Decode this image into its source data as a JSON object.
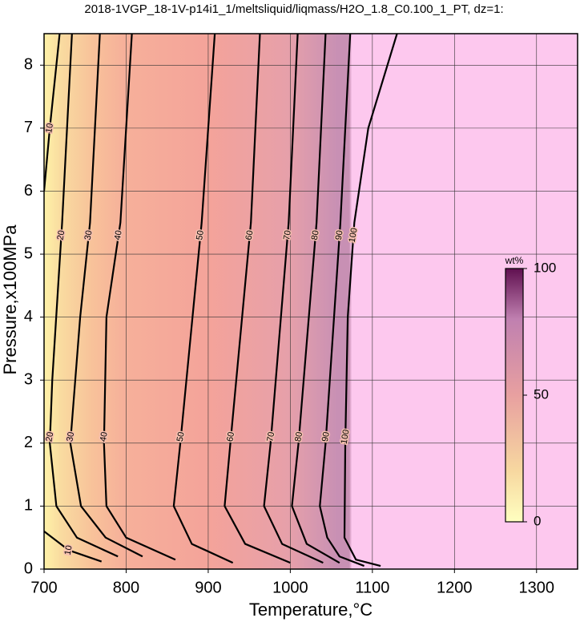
{
  "chart_data": {
    "type": "contour",
    "title": "2018-1VGP_18-1V-p14i1_1/meltsliquid/liqmass/H2O_1.8_C0.100_1_PT, dz=1:",
    "x_label": "Temperature,°C",
    "y_label": "Pressure,x100MPa",
    "xlim": [
      700,
      1350
    ],
    "ylim": [
      0,
      8.5
    ],
    "xticks": [
      700,
      800,
      900,
      1000,
      1100,
      1200,
      1300
    ],
    "yticks": [
      0,
      1,
      2,
      3,
      4,
      5,
      6,
      7,
      8
    ],
    "grid": true,
    "line_color": "#000000",
    "contours": [
      {
        "level": 10,
        "x": [
          719,
          707,
          700,
          null,
          700,
          730,
          770
        ],
        "y": [
          8.5,
          7,
          6,
          null,
          0.6,
          0.3,
          0.12
        ]
      },
      {
        "level": 20,
        "x": [
          734,
          722,
          710,
          707,
          715,
          740,
          790
        ],
        "y": [
          8.5,
          5.5,
          3,
          2,
          1,
          0.5,
          0.2
        ]
      },
      {
        "level": 30,
        "x": [
          768,
          756,
          744,
          732,
          745,
          775,
          820
        ],
        "y": [
          8.5,
          5.5,
          4,
          2,
          1,
          0.5,
          0.2
        ]
      },
      {
        "level": 40,
        "x": [
          807,
          793,
          776,
          773,
          776,
          800,
          860
        ],
        "y": [
          8.5,
          5.5,
          4,
          2,
          1,
          0.5,
          0.15
        ]
      },
      {
        "level": 50,
        "x": [
          908,
          892,
          866,
          858,
          880,
          930
        ],
        "y": [
          8.5,
          5.5,
          2,
          1,
          0.4,
          0.1
        ]
      },
      {
        "level": 60,
        "x": [
          963,
          952,
          927,
          920,
          945,
          1000
        ],
        "y": [
          8.5,
          5.5,
          2,
          1,
          0.4,
          0.1
        ]
      },
      {
        "level": 70,
        "x": [
          1009,
          998,
          976,
          968,
          990,
          1040
        ],
        "y": [
          8.5,
          5.5,
          2,
          1,
          0.4,
          0.1
        ]
      },
      {
        "level": 80,
        "x": [
          1043,
          1032,
          1010,
          1002,
          1020,
          1060
        ],
        "y": [
          8.5,
          5.5,
          2,
          1,
          0.4,
          0.1
        ]
      },
      {
        "level": 90,
        "x": [
          1073,
          1061,
          1043,
          1036,
          1045,
          1060,
          1090
        ],
        "y": [
          8.5,
          5.5,
          2,
          1,
          0.5,
          0.2,
          0.05
        ]
      },
      {
        "level": 100,
        "x": [
          1130,
          1095,
          1078,
          1070,
          1067,
          1066,
          1080,
          1110
        ],
        "y": [
          8.5,
          7,
          5.5,
          4,
          2,
          0.5,
          0.15,
          0.05
        ]
      }
    ],
    "colorbar": {
      "label": "wt%",
      "lim": [
        0,
        100
      ],
      "ticks": [
        0,
        50,
        100
      ]
    }
  }
}
